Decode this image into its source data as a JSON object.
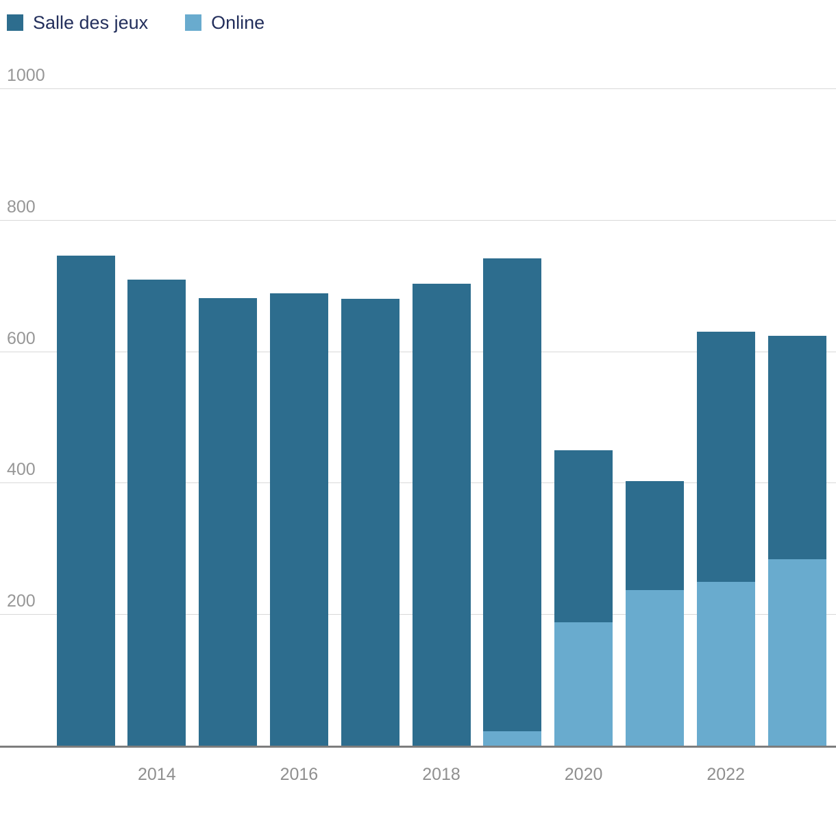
{
  "chart_data": {
    "type": "bar",
    "stacked": true,
    "title": "",
    "categories": [
      "2013",
      "2014",
      "2015",
      "2016",
      "2017",
      "2018",
      "2019",
      "2020",
      "2021",
      "2022",
      "2023"
    ],
    "series": [
      {
        "name": "Salle des jeux",
        "color": "#2d6d8e",
        "values": [
          746,
          709,
          681,
          688,
          680,
          703,
          741,
          450,
          403,
          630,
          624
        ]
      },
      {
        "name": "Online",
        "color": "#69abce",
        "values": [
          0,
          0,
          0,
          0,
          0,
          0,
          22,
          188,
          237,
          249,
          284
        ]
      }
    ],
    "ylim": [
      0,
      1000
    ],
    "yticks": [
      200,
      400,
      600,
      800,
      1000
    ],
    "ytick_labels": [
      "200",
      "400",
      "600",
      "800",
      "1000"
    ],
    "xtick_labels": [
      "2014",
      "2016",
      "2018",
      "2020",
      "2022"
    ],
    "grid": true,
    "legend_position": "top-left"
  },
  "colors": {
    "background": "#ffffff",
    "gridline": "#d8d8d8",
    "axis_line": "#7d7d7d",
    "y_tick_text": "#979797",
    "x_tick_text": "#8f8f8f",
    "legend_text": "#232f5c"
  }
}
